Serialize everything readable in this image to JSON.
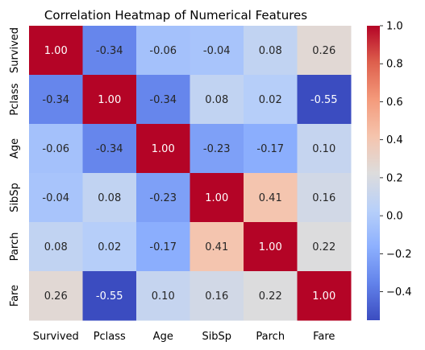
{
  "chart_data": {
    "type": "heatmap",
    "title": "Correlation Heatmap of Numerical Features",
    "row_labels": [
      "Survived",
      "Pclass",
      "Age",
      "SibSp",
      "Parch",
      "Fare"
    ],
    "col_labels": [
      "Survived",
      "Pclass",
      "Age",
      "SibSp",
      "Parch",
      "Fare"
    ],
    "values": [
      [
        1.0,
        -0.34,
        -0.06,
        -0.04,
        0.08,
        0.26
      ],
      [
        -0.34,
        1.0,
        -0.34,
        0.08,
        0.02,
        -0.55
      ],
      [
        -0.06,
        -0.34,
        1.0,
        -0.23,
        -0.17,
        0.1
      ],
      [
        -0.04,
        0.08,
        -0.23,
        1.0,
        0.41,
        0.16
      ],
      [
        0.08,
        0.02,
        -0.17,
        0.41,
        1.0,
        0.22
      ],
      [
        0.26,
        -0.55,
        0.1,
        0.16,
        0.22,
        1.0
      ]
    ],
    "value_format": "0.00",
    "colormap": "coolwarm",
    "colorbar": {
      "range": [
        -0.55,
        1.0
      ],
      "ticks": [
        1.0,
        0.8,
        0.6,
        0.4,
        0.2,
        0.0,
        -0.2,
        -0.4
      ],
      "tick_labels": [
        "1.0",
        "0.8",
        "0.6",
        "0.4",
        "0.2",
        "0.0",
        "−0.2",
        "−0.4"
      ]
    },
    "grid": false
  }
}
